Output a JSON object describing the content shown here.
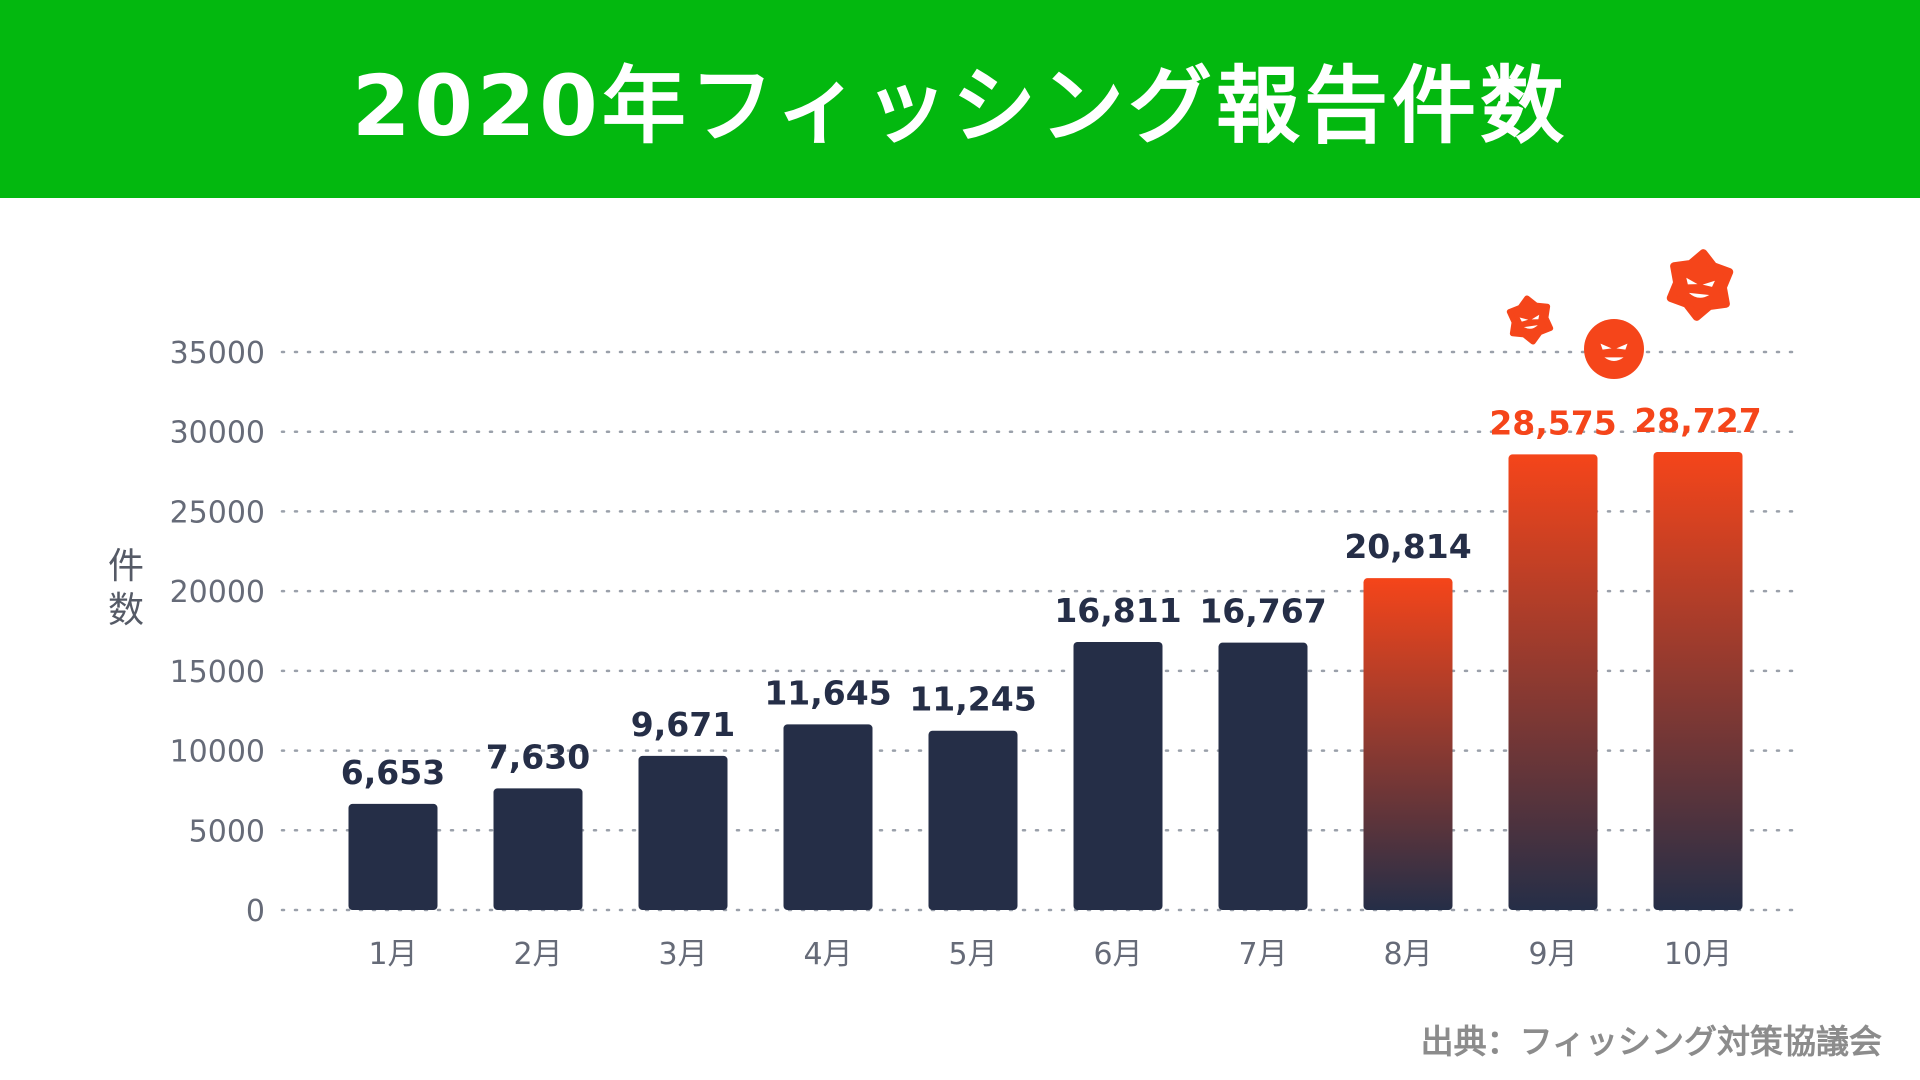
{
  "header": {
    "title": "2020年フィッシング報告件数"
  },
  "source": "出典：フィッシング対策協議会",
  "chart_data": {
    "type": "bar",
    "title": "2020年フィッシング報告件数",
    "ylabel": "件数",
    "xlabel": "",
    "categories": [
      "1月",
      "2月",
      "3月",
      "4月",
      "5月",
      "6月",
      "7月",
      "8月",
      "9月",
      "10月"
    ],
    "values": [
      6653,
      7630,
      9671,
      11645,
      11245,
      16811,
      16767,
      20814,
      28575,
      28727
    ],
    "value_labels": [
      "6,653",
      "7,630",
      "9,671",
      "11,645",
      "11,245",
      "16,811",
      "16,767",
      "20,814",
      "28,575",
      "28,727"
    ],
    "ylim": [
      0,
      35000
    ],
    "yticks": [
      "0",
      "5000",
      "10000",
      "15000",
      "20000",
      "25000",
      "30000",
      "35000"
    ],
    "grid": true,
    "highlight_from_index": 7,
    "colors": {
      "bar": "#252e47",
      "bar_highlight_top": "#f5451a",
      "label": "#252e47",
      "label_highlight": "#f5451a",
      "grid": "#9aa0aa",
      "tick": "#666b78",
      "monster": "#f5451a"
    },
    "decorations": [
      "monster-icon",
      "monster-icon",
      "monster-icon"
    ]
  }
}
